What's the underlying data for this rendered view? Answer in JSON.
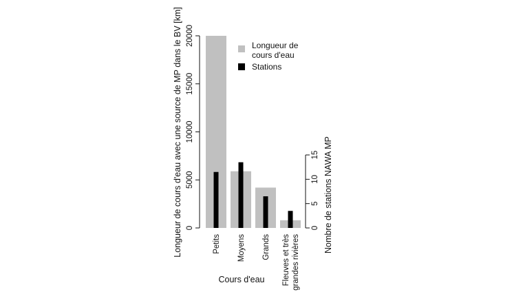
{
  "chart_data": {
    "type": "bar",
    "categories": [
      "Petits",
      "Moyens",
      "Grands",
      "Fleuves et très\ngrandes rivières"
    ],
    "xlabel": "Cours d'eau",
    "left_axis": {
      "label": "Longueur de cours d'eau avec une source de MP dans le BV [km]",
      "ylim": [
        0,
        20000
      ],
      "ticks": [
        0,
        5000,
        10000,
        15000,
        20000
      ]
    },
    "right_axis": {
      "label": "Nombre de stations NAWA MP",
      "ylim": [
        0,
        15
      ],
      "ticks": [
        0,
        5,
        10,
        15
      ]
    },
    "series": [
      {
        "name": "Longueur de\ncours d'eau",
        "axis": "left",
        "color": "#c0c0c0",
        "values": [
          20000,
          5900,
          4200,
          800
        ]
      },
      {
        "name": "Stations",
        "axis": "right",
        "color": "#000000",
        "values": [
          11.5,
          13.5,
          6.5,
          3.5
        ]
      }
    ],
    "legend_position": "top-right",
    "grid": false
  }
}
